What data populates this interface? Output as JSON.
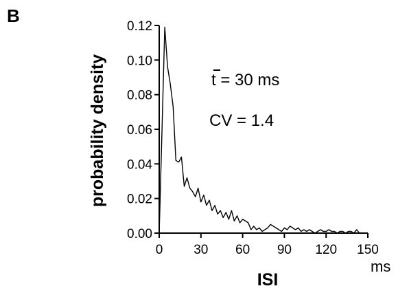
{
  "panel_label": "B",
  "chart_data": {
    "type": "line",
    "title": "",
    "xlabel": "ISI",
    "x_unit": "ms",
    "ylabel": "probability density",
    "xlim": [
      0,
      150
    ],
    "ylim": [
      0,
      0.12
    ],
    "x_ticks": [
      "0",
      "30",
      "60",
      "90",
      "120",
      "150"
    ],
    "y_ticks": [
      "0.00",
      "0.02",
      "0.04",
      "0.06",
      "0.08",
      "0.10",
      "0.12"
    ],
    "annotations": {
      "mean_symbol": "t",
      "mean_text": " = 30 ms",
      "cv_text": "CV = 1.4"
    },
    "grid": false,
    "series": [
      {
        "color": "#000000",
        "x": [
          0,
          2,
          4,
          6,
          8,
          10,
          12,
          14,
          16,
          18,
          20,
          22,
          24,
          26,
          28,
          30,
          32,
          34,
          36,
          38,
          40,
          42,
          44,
          46,
          48,
          50,
          52,
          54,
          56,
          58,
          60,
          62,
          64,
          66,
          68,
          70,
          72,
          74,
          76,
          78,
          80,
          82,
          84,
          86,
          88,
          90,
          92,
          94,
          96,
          98,
          100,
          102,
          104,
          106,
          108,
          110,
          112,
          114,
          116,
          118,
          120,
          122,
          124,
          126,
          128,
          130,
          132,
          134,
          136,
          138,
          140,
          142,
          144
        ],
        "y": [
          0.0,
          0.06,
          0.119,
          0.096,
          0.086,
          0.073,
          0.042,
          0.041,
          0.044,
          0.027,
          0.032,
          0.026,
          0.024,
          0.021,
          0.026,
          0.018,
          0.022,
          0.016,
          0.019,
          0.013,
          0.016,
          0.011,
          0.013,
          0.009,
          0.012,
          0.008,
          0.013,
          0.007,
          0.01,
          0.006,
          0.008,
          0.007,
          0.006,
          0.002,
          0.004,
          0.002,
          0.003,
          0.001,
          0.002,
          0.003,
          0.005,
          0.004,
          0.003,
          0.002,
          0.001,
          0.003,
          0.002,
          0.004,
          0.003,
          0.002,
          0.003,
          0.001,
          0.002,
          0.001,
          0.002,
          0.001,
          0.0,
          0.001,
          0.002,
          0.001,
          0.001,
          0.002,
          0.001,
          0.001,
          0.0,
          0.001,
          0.001,
          0.0,
          0.001,
          0.001,
          0.0,
          0.002,
          0.0
        ]
      }
    ]
  }
}
